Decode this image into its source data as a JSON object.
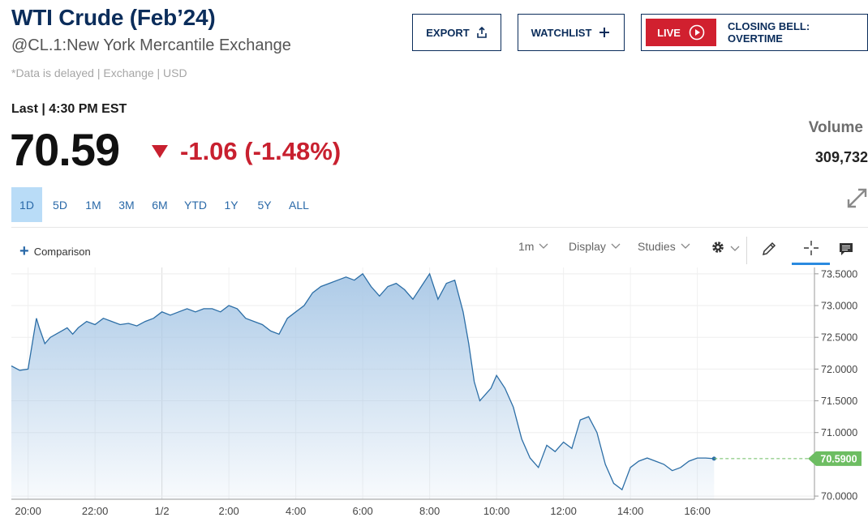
{
  "header": {
    "title": "WTI Crude (Feb’24)",
    "exchange": "@CL.1:New York Mercantile Exchange",
    "delayed_note": "*Data is delayed | Exchange | USD"
  },
  "actions": {
    "export_label": "EXPORT",
    "watchlist_label": "WATCHLIST",
    "live_label": "LIVE",
    "closing_bell_label": "CLOSING BELL: OVERTIME"
  },
  "quote": {
    "last_time": "Last | 4:30 PM EST",
    "price": "70.59",
    "change": "-1.06 (-1.48%)",
    "volume_label": "Volume",
    "volume_value": "309,732",
    "down_color": "#c8202f"
  },
  "ranges": [
    "1D",
    "5D",
    "1M",
    "3M",
    "6M",
    "YTD",
    "1Y",
    "5Y",
    "ALL"
  ],
  "active_range": "1D",
  "toolbar": {
    "comparison_label": "Comparison",
    "interval_label": "1m",
    "display_label": "Display",
    "studies_label": "Studies"
  },
  "chart_data": {
    "type": "area",
    "x_ticks": [
      "20:00",
      "22:00",
      "1/2",
      "2:00",
      "4:00",
      "6:00",
      "8:00",
      "10:00",
      "12:00",
      "14:00",
      "16:00"
    ],
    "y_ticks": [
      "73.5000",
      "73.0000",
      "72.5000",
      "72.0000",
      "71.5000",
      "71.0000",
      "70.0000"
    ],
    "ylim": [
      69.95,
      73.6
    ],
    "last_value_label": "70.5900",
    "last_value": 70.59,
    "line_color": "#2c6ea6",
    "fill_top_color": "#a9c8e6",
    "last_label_color": "#6dbd62",
    "series": [
      {
        "x": [
          "19:30",
          "19:45",
          "20:00",
          "20:15",
          "20:20",
          "20:30",
          "20:40",
          "20:50",
          "21:00",
          "21:10",
          "21:20",
          "21:30",
          "21:45",
          "22:00",
          "22:15",
          "22:30",
          "22:45",
          "23:00",
          "23:15",
          "23:30",
          "23:45",
          "0:00",
          "0:15",
          "0:30",
          "0:45",
          "1:00",
          "1:15",
          "1:30",
          "1:45",
          "2:00",
          "2:15",
          "2:30",
          "2:45",
          "3:00",
          "3:15",
          "3:30",
          "3:45",
          "4:00",
          "4:15",
          "4:30",
          "4:45",
          "5:00",
          "5:15",
          "5:30",
          "5:45",
          "6:00",
          "6:15",
          "6:30",
          "6:45",
          "7:00",
          "7:15",
          "7:30",
          "7:45",
          "8:00",
          "8:15",
          "8:30",
          "8:45",
          "9:00",
          "9:10",
          "9:20",
          "9:30",
          "9:40",
          "9:50",
          "10:00",
          "10:15",
          "10:30",
          "10:45",
          "11:00",
          "11:15",
          "11:30",
          "11:45",
          "12:00",
          "12:15",
          "12:30",
          "12:45",
          "13:00",
          "13:15",
          "13:30",
          "13:45",
          "14:00",
          "14:15",
          "14:30",
          "14:45",
          "15:00",
          "15:15",
          "15:30",
          "15:45",
          "16:00",
          "16:15",
          "16:30"
        ],
        "y": [
          72.05,
          71.98,
          72.0,
          72.8,
          72.65,
          72.4,
          72.5,
          72.55,
          72.6,
          72.65,
          72.55,
          72.65,
          72.75,
          72.7,
          72.8,
          72.75,
          72.7,
          72.72,
          72.68,
          72.75,
          72.8,
          72.9,
          72.85,
          72.9,
          72.95,
          72.9,
          72.95,
          72.95,
          72.9,
          73.0,
          72.95,
          72.8,
          72.75,
          72.7,
          72.6,
          72.55,
          72.8,
          72.9,
          73.0,
          73.2,
          73.3,
          73.35,
          73.4,
          73.45,
          73.4,
          73.5,
          73.3,
          73.15,
          73.3,
          73.35,
          73.25,
          73.1,
          73.3,
          73.5,
          73.1,
          73.35,
          73.4,
          72.9,
          72.4,
          71.8,
          71.5,
          71.6,
          71.7,
          71.9,
          71.7,
          71.4,
          70.9,
          70.6,
          70.45,
          70.8,
          70.7,
          70.85,
          70.75,
          71.2,
          71.25,
          71.0,
          70.5,
          70.2,
          70.1,
          70.45,
          70.55,
          70.6,
          70.55,
          70.5,
          70.4,
          70.45,
          70.55,
          70.6,
          70.6,
          70.59
        ]
      }
    ]
  }
}
